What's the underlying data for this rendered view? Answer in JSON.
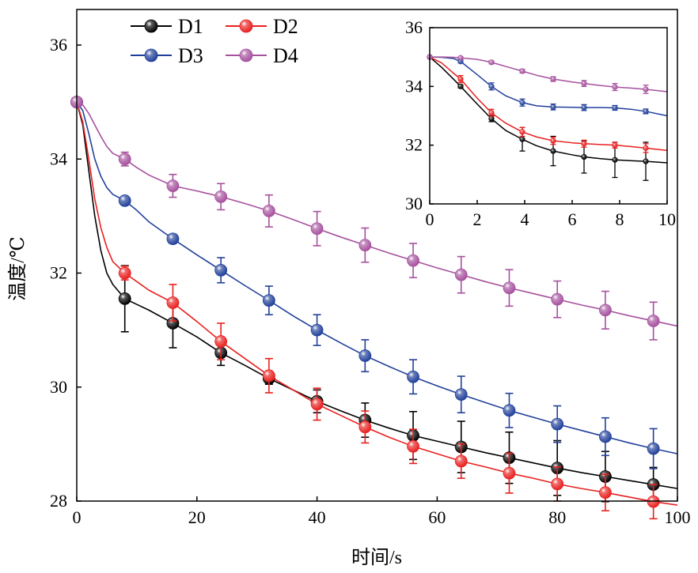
{
  "chart_data": [
    {
      "type": "line",
      "xlabel": "时间/s",
      "ylabel": "温度/℃",
      "xlim": [
        0,
        100
      ],
      "ylim": [
        28,
        37
      ],
      "xticks": [
        "0",
        "20",
        "40",
        "60",
        "80",
        "100"
      ],
      "yticks": [
        "28",
        "30",
        "32",
        "34",
        "36"
      ],
      "legend": "top-left",
      "grid": false,
      "series": [
        {
          "name": "D1",
          "color": "#000000",
          "markers": {
            "x": [
              0,
              8,
              16,
              24,
              32,
              40,
              48,
              56,
              64,
              72,
              80,
              88,
              96
            ],
            "y": [
              35.0,
              31.55,
              31.12,
              30.6,
              30.15,
              29.75,
              29.42,
              29.15,
              28.95,
              28.76,
              28.58,
              28.43,
              28.29
            ],
            "err": [
              0,
              0.58,
              0.43,
              0.22,
              0.1,
              0.2,
              0.3,
              0.42,
              0.45,
              0.45,
              0.48,
              0.44,
              0.3
            ]
          },
          "curve": {
            "x": [
              0,
              1,
              2,
              3,
              4,
              5,
              6,
              8,
              10,
              12,
              16,
              20,
              24,
              28,
              32,
              36,
              40,
              44,
              48,
              52,
              56,
              60,
              64,
              68,
              72,
              76,
              80,
              84,
              88,
              92,
              96,
              100
            ],
            "y": [
              35.0,
              34.6,
              33.8,
              33.0,
              32.4,
              32.0,
              31.8,
              31.55,
              31.45,
              31.35,
              31.12,
              30.88,
              30.6,
              30.38,
              30.15,
              29.95,
              29.75,
              29.58,
              29.42,
              29.28,
              29.15,
              29.05,
              28.95,
              28.85,
              28.76,
              28.67,
              28.58,
              28.5,
              28.43,
              28.36,
              28.29,
              28.22
            ]
          }
        },
        {
          "name": "D2",
          "color": "#e8201f",
          "markers": {
            "x": [
              0,
              8,
              16,
              24,
              32,
              40,
              48,
              56,
              64,
              72,
              80,
              88,
              96
            ],
            "y": [
              35.0,
              32.0,
              31.48,
              30.8,
              30.2,
              29.7,
              29.3,
              28.96,
              28.7,
              28.49,
              28.3,
              28.15,
              27.99
            ],
            "err": [
              0,
              0.12,
              0.32,
              0.32,
              0.3,
              0.28,
              0.28,
              0.3,
              0.3,
              0.35,
              0.3,
              0.32,
              0.3
            ]
          },
          "curve": {
            "x": [
              0,
              1,
              2,
              3,
              4,
              5,
              6,
              8,
              10,
              12,
              16,
              20,
              24,
              28,
              32,
              36,
              40,
              44,
              48,
              52,
              56,
              60,
              64,
              68,
              72,
              76,
              80,
              84,
              88,
              92,
              96,
              100
            ],
            "y": [
              35.0,
              34.65,
              34.0,
              33.3,
              32.8,
              32.45,
              32.2,
              32.0,
              31.85,
              31.7,
              31.48,
              31.15,
              30.8,
              30.5,
              30.2,
              29.95,
              29.7,
              29.5,
              29.3,
              29.12,
              28.96,
              28.83,
              28.7,
              28.6,
              28.49,
              28.4,
              28.3,
              28.22,
              28.15,
              28.07,
              27.99,
              27.93
            ]
          }
        },
        {
          "name": "D3",
          "color": "#21409a",
          "markers": {
            "x": [
              0,
              8,
              16,
              24,
              32,
              40,
              48,
              56,
              64,
              72,
              80,
              88,
              96
            ],
            "y": [
              35.0,
              33.27,
              32.6,
              32.05,
              31.52,
              31.0,
              30.55,
              30.18,
              29.87,
              29.59,
              29.35,
              29.13,
              28.92
            ],
            "err": [
              0,
              0.06,
              0.08,
              0.22,
              0.25,
              0.27,
              0.28,
              0.3,
              0.32,
              0.3,
              0.32,
              0.33,
              0.35
            ]
          },
          "curve": {
            "x": [
              0,
              1,
              2,
              3,
              4,
              5,
              6,
              8,
              10,
              12,
              16,
              20,
              24,
              28,
              32,
              36,
              40,
              44,
              48,
              52,
              56,
              60,
              64,
              68,
              72,
              76,
              80,
              84,
              88,
              92,
              96,
              100
            ],
            "y": [
              35.0,
              34.85,
              34.45,
              34.0,
              33.7,
              33.5,
              33.38,
              33.27,
              33.1,
              32.9,
              32.6,
              32.32,
              32.05,
              31.78,
              31.52,
              31.25,
              31.0,
              30.77,
              30.55,
              30.36,
              30.18,
              30.02,
              29.87,
              29.73,
              29.59,
              29.47,
              29.35,
              29.24,
              29.13,
              29.02,
              28.92,
              28.83
            ]
          }
        },
        {
          "name": "D4",
          "color": "#a6519e",
          "markers": {
            "x": [
              0,
              8,
              16,
              24,
              32,
              40,
              48,
              56,
              64,
              72,
              80,
              88,
              96
            ],
            "y": [
              35.0,
              34.0,
              33.53,
              33.34,
              33.09,
              32.78,
              32.49,
              32.22,
              31.97,
              31.74,
              31.54,
              31.35,
              31.16
            ],
            "err": [
              0,
              0.12,
              0.2,
              0.23,
              0.28,
              0.3,
              0.3,
              0.3,
              0.32,
              0.32,
              0.32,
              0.33,
              0.33
            ]
          },
          "curve": {
            "x": [
              0,
              1,
              2,
              3,
              4,
              5,
              6,
              8,
              10,
              12,
              16,
              20,
              24,
              28,
              32,
              36,
              40,
              44,
              48,
              52,
              56,
              60,
              64,
              68,
              72,
              76,
              80,
              84,
              88,
              92,
              96,
              100
            ],
            "y": [
              35.0,
              34.95,
              34.8,
              34.6,
              34.4,
              34.22,
              34.1,
              34.0,
              33.85,
              33.72,
              33.53,
              33.44,
              33.34,
              33.22,
              33.09,
              32.94,
              32.78,
              32.63,
              32.49,
              32.35,
              32.22,
              32.09,
              31.97,
              31.85,
              31.74,
              31.64,
              31.54,
              31.44,
              31.35,
              31.25,
              31.16,
              31.07
            ]
          }
        }
      ]
    },
    {
      "type": "line",
      "placement": "inset-top-right",
      "xlim": [
        0,
        10
      ],
      "ylim": [
        30,
        36
      ],
      "xticks": [
        "0",
        "2",
        "4",
        "6",
        "8",
        "10"
      ],
      "yticks": [
        "30",
        "32",
        "34",
        "36"
      ],
      "series": [
        {
          "name": "D1",
          "color": "#000000",
          "markers": {
            "x": [
              0,
              1.3,
              2.6,
              3.9,
              5.2,
              6.5,
              7.8,
              9.1
            ],
            "y": [
              35.0,
              34.0,
              32.9,
              32.2,
              31.8,
              31.6,
              31.5,
              31.45
            ],
            "err": [
              0,
              0.05,
              0.1,
              0.4,
              0.5,
              0.55,
              0.6,
              0.65
            ]
          },
          "curve": {
            "x": [
              0,
              0.5,
              1,
              1.3,
              2,
              2.6,
              3.2,
              3.9,
              4.5,
              5.2,
              6,
              6.5,
              7.2,
              7.8,
              8.5,
              9.1,
              10
            ],
            "y": [
              35.0,
              34.65,
              34.25,
              34.0,
              33.4,
              32.9,
              32.5,
              32.2,
              31.98,
              31.8,
              31.67,
              31.6,
              31.54,
              31.5,
              31.47,
              31.45,
              31.4
            ]
          }
        },
        {
          "name": "D2",
          "color": "#e8201f",
          "markers": {
            "x": [
              0,
              1.3,
              2.6,
              3.9,
              5.2,
              6.5,
              7.8,
              9.1
            ],
            "y": [
              35.0,
              34.25,
              33.1,
              32.45,
              32.15,
              32.05,
              32.0,
              31.9
            ],
            "err": [
              0,
              0.12,
              0.12,
              0.15,
              0.12,
              0.12,
              0.1,
              0.15
            ]
          },
          "curve": {
            "x": [
              0,
              0.5,
              1,
              1.3,
              2,
              2.6,
              3.2,
              3.9,
              4.5,
              5.2,
              6,
              6.5,
              7.2,
              7.8,
              8.5,
              9.1,
              10
            ],
            "y": [
              35.0,
              34.8,
              34.45,
              34.25,
              33.6,
              33.1,
              32.75,
              32.45,
              32.28,
              32.15,
              32.08,
              32.05,
              32.02,
              32.0,
              31.95,
              31.9,
              31.82
            ]
          }
        },
        {
          "name": "D3",
          "color": "#21409a",
          "markers": {
            "x": [
              0,
              1.3,
              2.6,
              3.9,
              5.2,
              6.5,
              7.8,
              9.1
            ],
            "y": [
              35.0,
              34.85,
              34.0,
              33.45,
              33.3,
              33.28,
              33.27,
              33.15
            ],
            "err": [
              0,
              0.05,
              0.12,
              0.12,
              0.1,
              0.1,
              0.08,
              0.08
            ]
          },
          "curve": {
            "x": [
              0,
              0.5,
              1,
              1.3,
              2,
              2.6,
              3.2,
              3.9,
              4.5,
              5.2,
              6,
              6.5,
              7.2,
              7.8,
              8.5,
              9.1,
              10
            ],
            "y": [
              35.0,
              34.99,
              34.95,
              34.85,
              34.4,
              34.0,
              33.68,
              33.45,
              33.34,
              33.3,
              33.29,
              33.28,
              33.28,
              33.27,
              33.22,
              33.15,
              33.0
            ]
          }
        },
        {
          "name": "D4",
          "color": "#a6519e",
          "markers": {
            "x": [
              0,
              1.3,
              2.6,
              3.9,
              5.2,
              6.5,
              7.8,
              9.1
            ],
            "y": [
              35.0,
              34.97,
              34.82,
              34.52,
              34.25,
              34.1,
              33.98,
              33.9
            ],
            "err": [
              0,
              0.04,
              0.05,
              0.06,
              0.08,
              0.1,
              0.12,
              0.14
            ]
          },
          "curve": {
            "x": [
              0,
              0.5,
              1,
              1.3,
              2,
              2.6,
              3.2,
              3.9,
              4.5,
              5.2,
              6,
              6.5,
              7.2,
              7.8,
              8.5,
              9.1,
              10
            ],
            "y": [
              35.0,
              35.0,
              34.99,
              34.97,
              34.92,
              34.82,
              34.68,
              34.52,
              34.38,
              34.25,
              34.15,
              34.1,
              34.03,
              33.98,
              33.94,
              33.9,
              33.82
            ]
          }
        }
      ]
    }
  ]
}
